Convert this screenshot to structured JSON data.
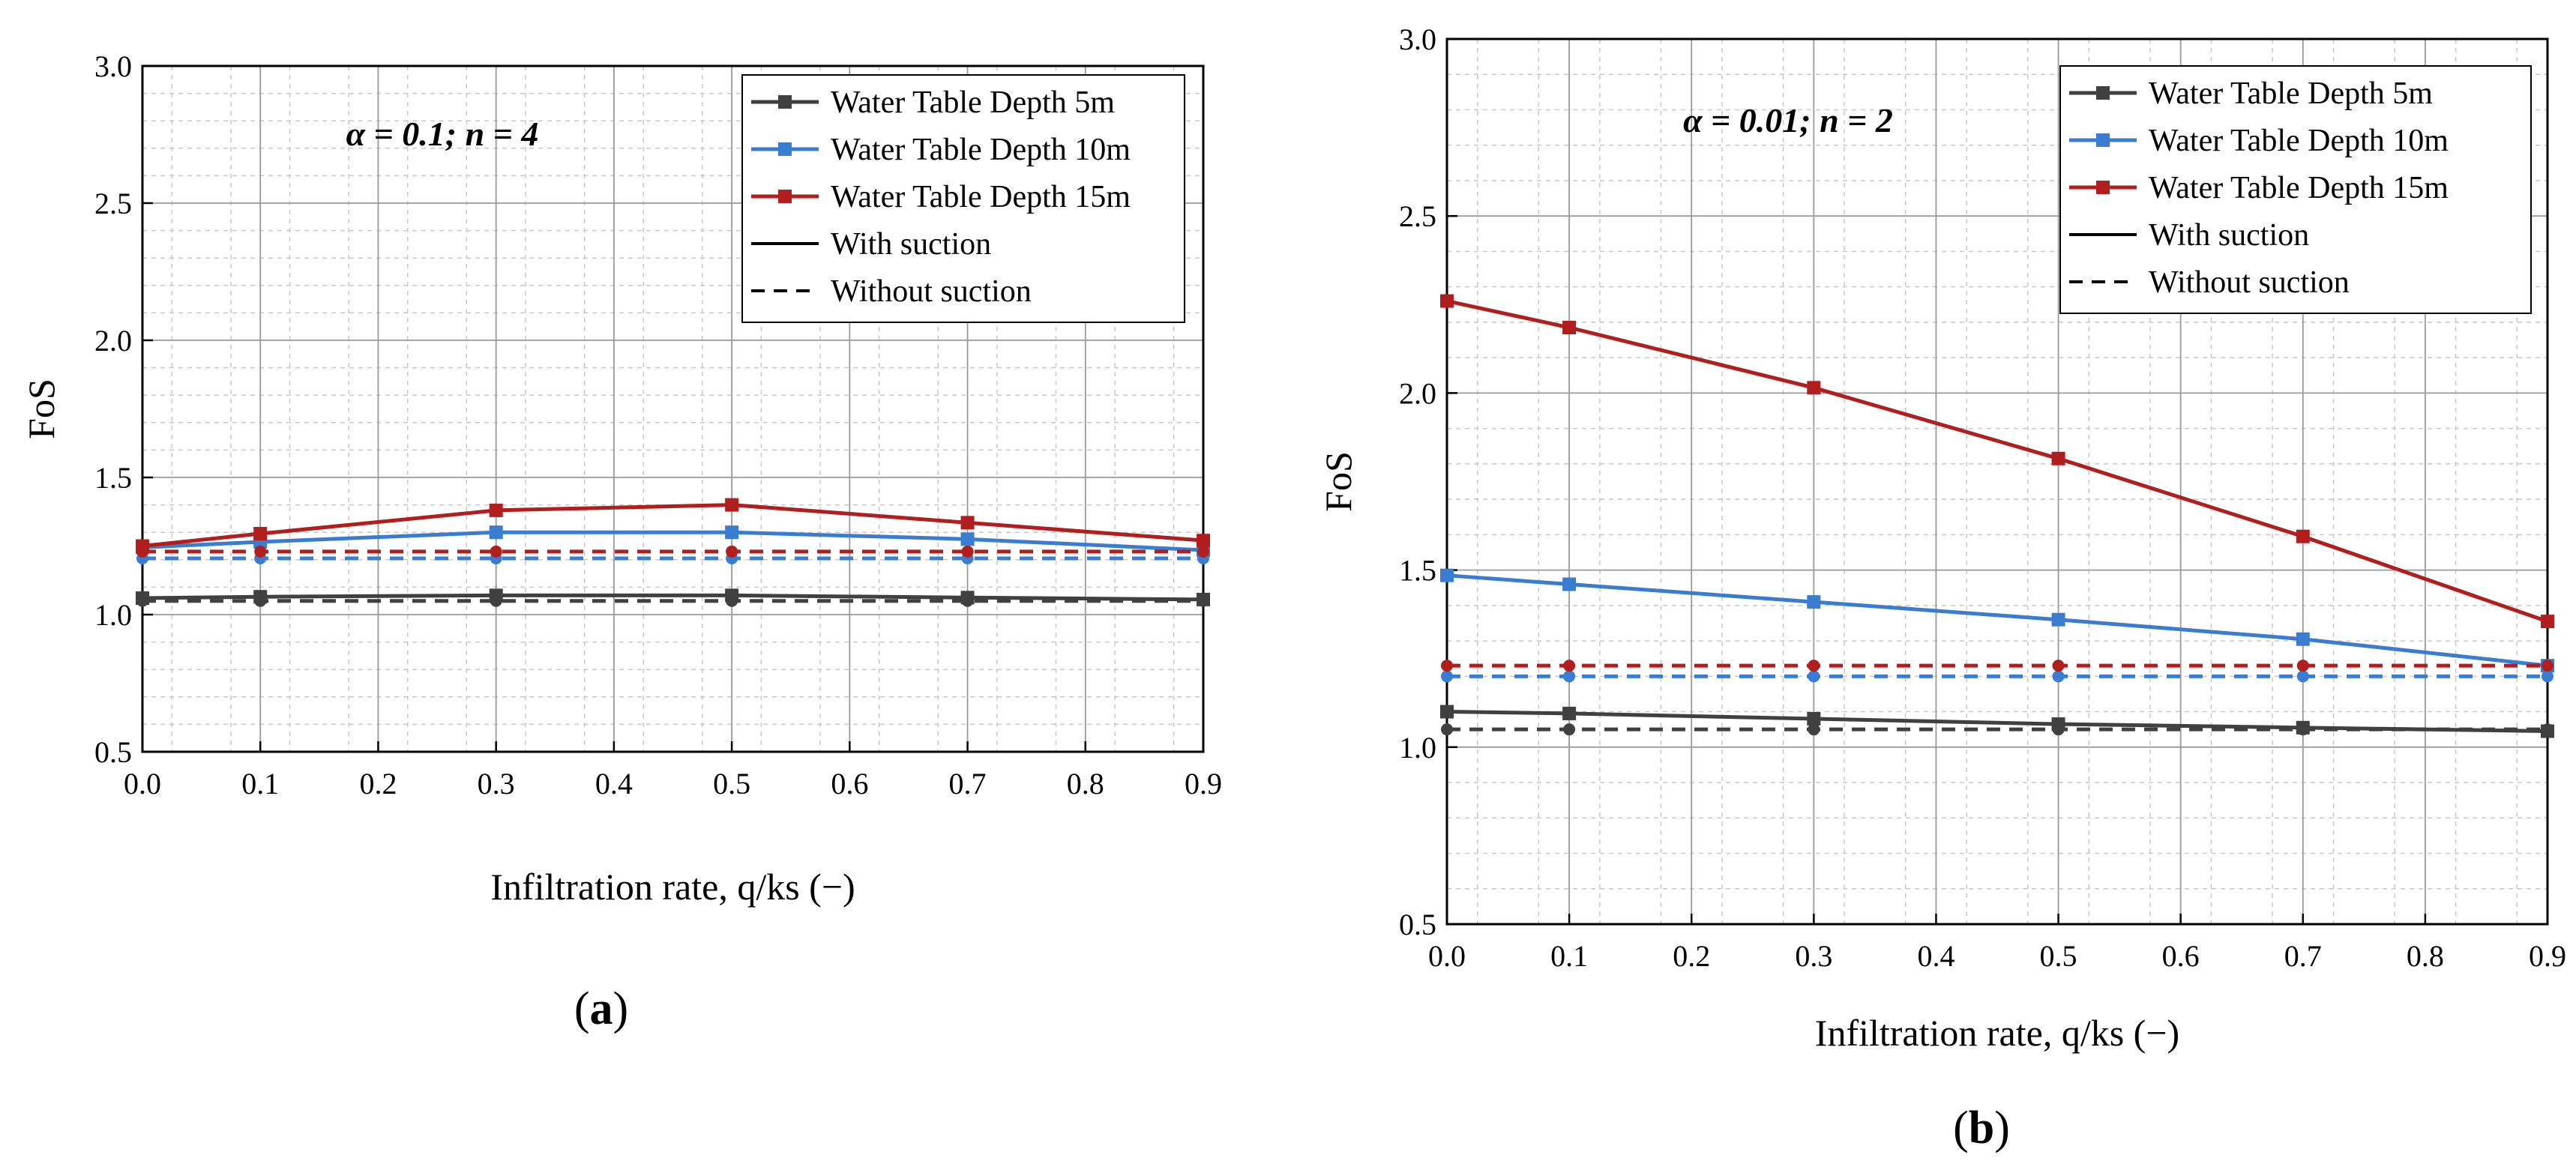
{
  "chart_data": [
    {
      "type": "line",
      "panel_label": "(a)",
      "panel_letter": "a",
      "annotation": "α = 0.1; n = 4",
      "xlabel": "Infiltration rate, q/ks (−)",
      "ylabel": "FoS",
      "xlim": [
        0.0,
        0.9
      ],
      "ylim": [
        0.5,
        3.0
      ],
      "xticks": [
        "0.0",
        "0.1",
        "0.2",
        "0.3",
        "0.4",
        "0.5",
        "0.6",
        "0.7",
        "0.8",
        "0.9"
      ],
      "yticks": [
        "0.5",
        "1.0",
        "1.5",
        "2.0",
        "2.5",
        "3.0"
      ],
      "grid": true,
      "legend_position": "top-right",
      "legend": [
        "Water Table Depth 5m",
        "Water Table Depth 10m",
        "Water Table Depth 15m",
        "With suction",
        "Without suction"
      ],
      "x": [
        0.0,
        0.1,
        0.3,
        0.5,
        0.7,
        0.9
      ],
      "series": [
        {
          "name": "Water Table Depth 5m",
          "color": "#404040",
          "suction": "with",
          "values": [
            1.06,
            1.065,
            1.07,
            1.07,
            1.062,
            1.055
          ]
        },
        {
          "name": "Water Table Depth 10m",
          "color": "#3a7dd0",
          "suction": "with",
          "values": [
            1.245,
            1.265,
            1.3,
            1.3,
            1.275,
            1.235
          ]
        },
        {
          "name": "Water Table Depth 15m",
          "color": "#b01e1e",
          "suction": "with",
          "values": [
            1.25,
            1.295,
            1.38,
            1.4,
            1.335,
            1.27
          ]
        },
        {
          "name": "Water Table Depth 5m",
          "color": "#404040",
          "suction": "without",
          "values": [
            1.05,
            1.05,
            1.05,
            1.05,
            1.05,
            1.05
          ]
        },
        {
          "name": "Water Table Depth 10m",
          "color": "#3a7dd0",
          "suction": "without",
          "values": [
            1.205,
            1.205,
            1.205,
            1.205,
            1.205,
            1.205
          ]
        },
        {
          "name": "Water Table Depth 15m",
          "color": "#b01e1e",
          "suction": "without",
          "values": [
            1.23,
            1.23,
            1.23,
            1.23,
            1.23,
            1.23
          ]
        }
      ]
    },
    {
      "type": "line",
      "panel_label": "(b)",
      "panel_letter": "b",
      "annotation": "α = 0.01; n = 2",
      "xlabel": "Infiltration rate, q/ks (−)",
      "ylabel": "FoS",
      "xlim": [
        0.0,
        0.9
      ],
      "ylim": [
        0.5,
        3.0
      ],
      "xticks": [
        "0.0",
        "0.1",
        "0.2",
        "0.3",
        "0.4",
        "0.5",
        "0.6",
        "0.7",
        "0.8",
        "0.9"
      ],
      "yticks": [
        "0.5",
        "1.0",
        "1.5",
        "2.0",
        "2.5",
        "3.0"
      ],
      "grid": true,
      "legend_position": "top-right",
      "legend": [
        "Water Table Depth 5m",
        "Water Table Depth 10m",
        "Water Table Depth 15m",
        "With suction",
        "Without suction"
      ],
      "x": [
        0.0,
        0.1,
        0.3,
        0.5,
        0.7,
        0.9
      ],
      "series": [
        {
          "name": "Water Table Depth 5m",
          "color": "#404040",
          "suction": "with",
          "values": [
            1.1,
            1.095,
            1.08,
            1.065,
            1.055,
            1.045
          ]
        },
        {
          "name": "Water Table Depth 10m",
          "color": "#3a7dd0",
          "suction": "with",
          "values": [
            1.485,
            1.46,
            1.41,
            1.36,
            1.305,
            1.23
          ]
        },
        {
          "name": "Water Table Depth 15m",
          "color": "#b01e1e",
          "suction": "with",
          "values": [
            2.26,
            2.185,
            2.015,
            1.815,
            1.595,
            1.355
          ]
        },
        {
          "name": "Water Table Depth 5m",
          "color": "#404040",
          "suction": "without",
          "values": [
            1.05,
            1.05,
            1.05,
            1.05,
            1.05,
            1.05
          ]
        },
        {
          "name": "Water Table Depth 10m",
          "color": "#3a7dd0",
          "suction": "without",
          "values": [
            1.2,
            1.2,
            1.2,
            1.2,
            1.2,
            1.2
          ]
        },
        {
          "name": "Water Table Depth 15m",
          "color": "#b01e1e",
          "suction": "without",
          "values": [
            1.23,
            1.23,
            1.23,
            1.23,
            1.23,
            1.23
          ]
        }
      ]
    }
  ]
}
